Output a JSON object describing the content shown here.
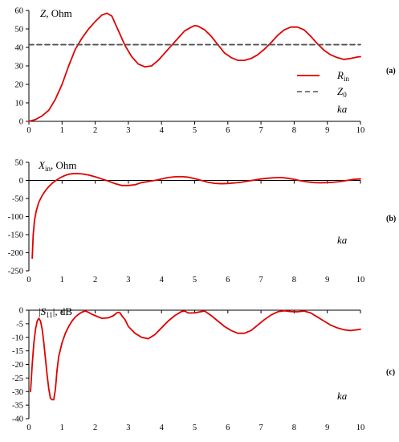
{
  "chart_data": [
    {
      "type": "line",
      "panel_label": "(a)",
      "ylabel_main": "Z",
      "ylabel_suffix": ", Ohm",
      "xlabel": "ka",
      "xlim": [
        0,
        10
      ],
      "ylim": [
        0,
        60
      ],
      "xticks": [
        0,
        1,
        2,
        3,
        4,
        5,
        6,
        7,
        8,
        9,
        10
      ],
      "yticks": [
        0,
        10,
        20,
        30,
        40,
        50,
        60
      ],
      "grid": false,
      "legend_position": "right",
      "legend": [
        {
          "main": "R",
          "sub": "in",
          "style": "solid",
          "color": "#e00000"
        },
        {
          "main": "Z",
          "sub": "0",
          "style": "dashed",
          "color": "#555555"
        }
      ],
      "series": [
        {
          "name": "R_in",
          "color": "#e00000",
          "style": "solid",
          "x": [
            0,
            0.2,
            0.4,
            0.6,
            0.8,
            1.0,
            1.2,
            1.4,
            1.6,
            1.8,
            2.0,
            2.2,
            2.35,
            2.5,
            2.7,
            2.9,
            3.1,
            3.3,
            3.5,
            3.7,
            3.9,
            4.1,
            4.3,
            4.5,
            4.7,
            4.9,
            5.0,
            5.1,
            5.3,
            5.5,
            5.7,
            5.9,
            6.1,
            6.3,
            6.5,
            6.7,
            6.9,
            7.1,
            7.3,
            7.5,
            7.7,
            7.9,
            8.1,
            8.3,
            8.5,
            8.7,
            8.9,
            9.1,
            9.3,
            9.5,
            9.7,
            9.9,
            10.0
          ],
          "y": [
            0,
            1,
            3,
            6,
            12,
            20,
            30,
            39,
            45,
            50,
            54,
            57.5,
            58.5,
            57,
            49,
            41,
            35,
            31,
            29.5,
            30,
            33,
            37,
            41,
            45,
            49,
            51,
            51.8,
            51.5,
            49.5,
            46,
            41.5,
            37,
            34.5,
            33,
            33,
            34,
            36,
            39,
            42.5,
            46.5,
            49.5,
            51,
            51,
            49.5,
            46,
            42,
            38.5,
            36,
            34.5,
            33.5,
            34,
            34.8,
            35
          ]
        },
        {
          "name": "Z_0",
          "color": "#555555",
          "style": "dashed",
          "x": [
            0,
            10
          ],
          "y": [
            41.5,
            41.5
          ]
        }
      ]
    },
    {
      "type": "line",
      "panel_label": "(b)",
      "ylabel_main": "X",
      "ylabel_sub": "in",
      "ylabel_suffix": ", Ohm",
      "xlabel": "ka",
      "xlim": [
        0,
        10
      ],
      "ylim": [
        -250,
        50
      ],
      "xticks": [
        0,
        1,
        2,
        3,
        4,
        5,
        6,
        7,
        8,
        9,
        10
      ],
      "yticks": [
        -250,
        -200,
        -150,
        -100,
        -50,
        0,
        50
      ],
      "grid": false,
      "series": [
        {
          "name": "X_in",
          "color": "#e00000",
          "style": "solid",
          "x": [
            0.1,
            0.13,
            0.17,
            0.22,
            0.3,
            0.4,
            0.5,
            0.6,
            0.7,
            0.8,
            0.9,
            1.0,
            1.1,
            1.2,
            1.3,
            1.4,
            1.6,
            1.8,
            2.0,
            2.2,
            2.4,
            2.6,
            2.8,
            3.0,
            3.2,
            3.4,
            3.6,
            3.8,
            4.0,
            4.2,
            4.4,
            4.6,
            4.8,
            5.0,
            5.2,
            5.4,
            5.6,
            5.8,
            6.0,
            6.2,
            6.4,
            6.6,
            6.8,
            7.0,
            7.2,
            7.4,
            7.6,
            7.8,
            8.0,
            8.2,
            8.4,
            8.6,
            8.8,
            9.0,
            9.2,
            9.4,
            9.6,
            9.8,
            10.0
          ],
          "y": [
            -215,
            -150,
            -110,
            -85,
            -60,
            -42,
            -28,
            -17,
            -8,
            -1,
            5,
            10,
            14,
            17,
            18.5,
            19,
            18,
            15,
            10,
            4,
            -2,
            -9,
            -14,
            -14,
            -12,
            -6,
            -3,
            0,
            4,
            8,
            10,
            10.5,
            9,
            5,
            0,
            -5,
            -8,
            -9,
            -8.5,
            -7,
            -5,
            -2,
            1,
            4,
            6,
            7.5,
            8,
            6,
            3,
            -1,
            -4,
            -6,
            -6.5,
            -6,
            -5,
            -3,
            0,
            3,
            4
          ]
        }
      ]
    },
    {
      "type": "line",
      "panel_label": "(c)",
      "ylabel_prefix": "|",
      "ylabel_main": "S",
      "ylabel_sub": "11",
      "ylabel_suffix": "|, dB",
      "xlabel": "ka",
      "xlim": [
        0,
        10
      ],
      "ylim": [
        -40,
        0
      ],
      "xticks": [
        0,
        1,
        2,
        3,
        4,
        5,
        6,
        7,
        8,
        9,
        10
      ],
      "yticks": [
        -40,
        -35,
        -30,
        -25,
        -20,
        -15,
        -10,
        -5,
        0
      ],
      "grid": false,
      "series": [
        {
          "name": "|S11|",
          "color": "#e00000",
          "style": "solid",
          "x": [
            0.05,
            0.1,
            0.15,
            0.2,
            0.25,
            0.3,
            0.35,
            0.4,
            0.45,
            0.5,
            0.55,
            0.6,
            0.65,
            0.7,
            0.75,
            0.8,
            0.85,
            0.9,
            1.0,
            1.1,
            1.2,
            1.3,
            1.4,
            1.5,
            1.6,
            1.7,
            1.8,
            1.9,
            2.0,
            2.2,
            2.4,
            2.55,
            2.65,
            2.7,
            2.75,
            2.8,
            2.9,
            3.0,
            3.2,
            3.4,
            3.6,
            3.8,
            4.0,
            4.2,
            4.4,
            4.6,
            4.7,
            4.8,
            5.0,
            5.2,
            5.3,
            5.5,
            5.7,
            5.9,
            6.1,
            6.3,
            6.5,
            6.7,
            6.9,
            7.1,
            7.3,
            7.5,
            7.7,
            7.9,
            8.1,
            8.3,
            8.5,
            8.7,
            8.9,
            9.1,
            9.3,
            9.5,
            9.7,
            9.9,
            10.0
          ],
          "y": [
            -30,
            -20,
            -12,
            -7,
            -4,
            -3,
            -4,
            -7,
            -12,
            -18,
            -24,
            -29,
            -32.5,
            -33,
            -33,
            -29,
            -22,
            -17,
            -12,
            -8.5,
            -6,
            -4,
            -2.5,
            -1.5,
            -0.7,
            -0.3,
            -0.8,
            -1.5,
            -2,
            -3,
            -2.8,
            -2,
            -1,
            -0.8,
            -1,
            -2,
            -3.5,
            -6,
            -8.5,
            -10,
            -10.5,
            -9,
            -6.5,
            -4,
            -2,
            -0.5,
            -0.3,
            -1,
            -1,
            -0.5,
            -0.3,
            -2,
            -4,
            -6,
            -7.5,
            -8.5,
            -8.5,
            -7.5,
            -5.5,
            -3.5,
            -1.8,
            -0.6,
            -0.2,
            -0.5,
            -0.6,
            -0.3,
            -1,
            -2.5,
            -4,
            -5.5,
            -6.5,
            -7.2,
            -7.5,
            -7.2,
            -7
          ]
        }
      ]
    }
  ]
}
